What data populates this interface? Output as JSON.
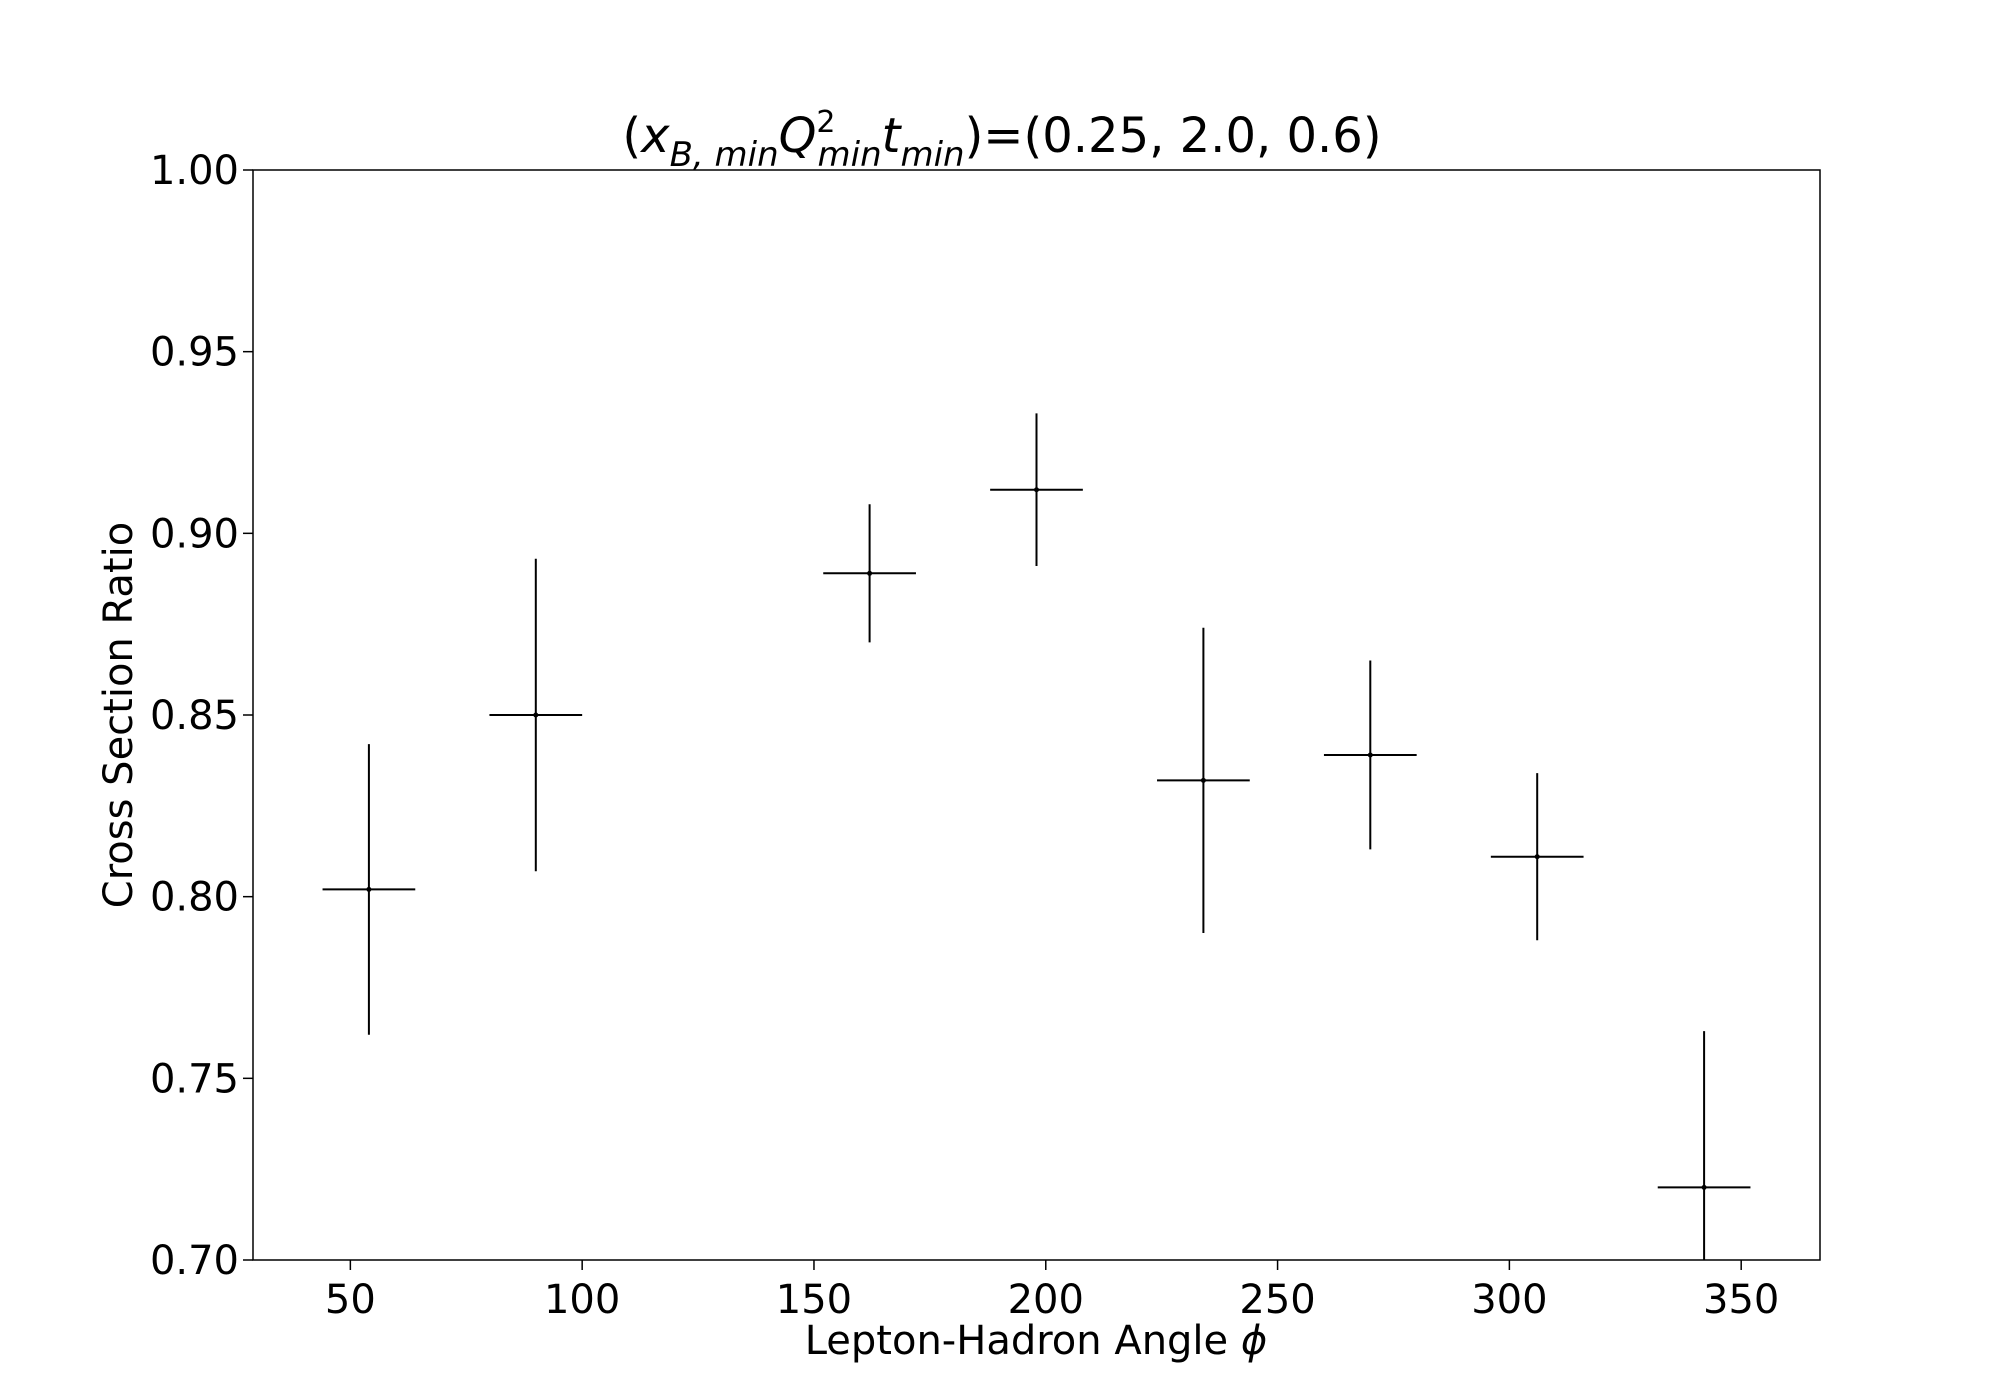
{
  "chart_data": {
    "type": "scatter",
    "title": {
      "open": "(",
      "var1": "x",
      "var1_sub": "B, min",
      "var2": "Q",
      "var2_sup": "2",
      "var2_sub": "min",
      "var3": "t",
      "var3_sub": "min",
      "close": ")=(0.25, 2.0, 0.6)"
    },
    "xlabel": {
      "text": "Lepton-Hadron Angle ",
      "symbol": "ϕ"
    },
    "ylabel": "Cross Section Ratio",
    "xlim": [
      29,
      367
    ],
    "ylim": [
      0.7,
      1.0
    ],
    "xticks": [
      50,
      100,
      150,
      200,
      250,
      300,
      350
    ],
    "xtick_labels": [
      "50",
      "100",
      "150",
      "200",
      "250",
      "300",
      "350"
    ],
    "yticks": [
      0.7,
      0.75,
      0.8,
      0.85,
      0.9,
      0.95,
      1.0
    ],
    "ytick_labels": [
      "0.70",
      "0.75",
      "0.80",
      "0.85",
      "0.90",
      "0.95",
      "1.00"
    ],
    "grid": false,
    "marker_color": "#000000",
    "points": [
      {
        "x": 54,
        "y": 0.802,
        "xerr": 10,
        "yerr_low": 0.04,
        "yerr_high": 0.04
      },
      {
        "x": 90,
        "y": 0.85,
        "xerr": 10,
        "yerr_low": 0.043,
        "yerr_high": 0.043
      },
      {
        "x": 162,
        "y": 0.889,
        "xerr": 10,
        "yerr_low": 0.019,
        "yerr_high": 0.019
      },
      {
        "x": 198,
        "y": 0.912,
        "xerr": 10,
        "yerr_low": 0.021,
        "yerr_high": 0.021
      },
      {
        "x": 234,
        "y": 0.832,
        "xerr": 10,
        "yerr_low": 0.042,
        "yerr_high": 0.042
      },
      {
        "x": 270,
        "y": 0.839,
        "xerr": 10,
        "yerr_low": 0.026,
        "yerr_high": 0.026
      },
      {
        "x": 306,
        "y": 0.811,
        "xerr": 10,
        "yerr_low": 0.023,
        "yerr_high": 0.023
      },
      {
        "x": 342,
        "y": 0.72,
        "xerr": 10,
        "yerr_low": 0.043,
        "yerr_high": 0.043
      }
    ]
  }
}
